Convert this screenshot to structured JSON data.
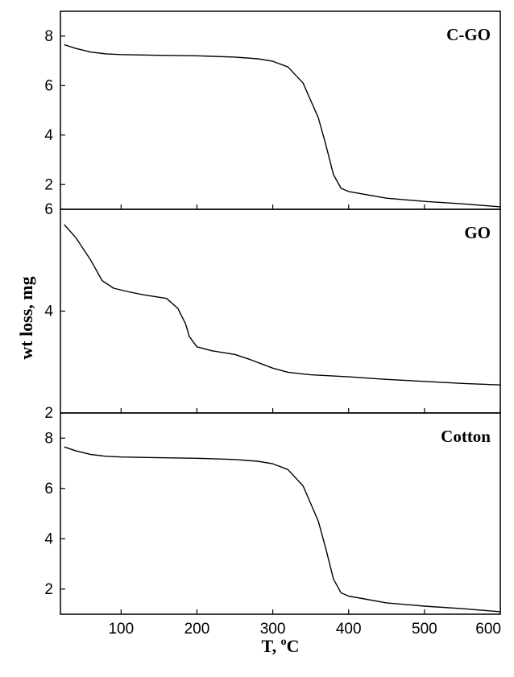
{
  "chart_data": {
    "type": "line",
    "xlabel": "T, ",
    "xlabel_sup": "o",
    "xlabel_unit": "C",
    "ylabel": "wt loss, mg",
    "xlim": [
      20,
      600
    ],
    "xticks": [
      100,
      200,
      300,
      400,
      500,
      600
    ],
    "grid": false,
    "panels": [
      {
        "label": "C-GO",
        "ylim": [
          1.0,
          9.0
        ],
        "yticks": [
          2,
          4,
          6,
          8
        ],
        "x": [
          25,
          40,
          60,
          80,
          100,
          150,
          200,
          250,
          280,
          300,
          320,
          340,
          360,
          370,
          380,
          390,
          400,
          450,
          500,
          550,
          600
        ],
        "y": [
          7.65,
          7.5,
          7.35,
          7.28,
          7.25,
          7.22,
          7.2,
          7.15,
          7.08,
          6.98,
          6.75,
          6.1,
          4.7,
          3.6,
          2.4,
          1.85,
          1.72,
          1.45,
          1.32,
          1.22,
          1.1
        ]
      },
      {
        "label": "GO",
        "ylim": [
          2.0,
          6.0
        ],
        "yticks": [
          2,
          4,
          6
        ],
        "x": [
          25,
          40,
          60,
          75,
          90,
          110,
          130,
          160,
          175,
          185,
          190,
          200,
          220,
          250,
          270,
          300,
          320,
          350,
          400,
          450,
          500,
          550,
          600
        ],
        "y": [
          5.7,
          5.45,
          5.0,
          4.6,
          4.45,
          4.38,
          4.32,
          4.25,
          4.05,
          3.75,
          3.5,
          3.3,
          3.22,
          3.15,
          3.05,
          2.88,
          2.8,
          2.75,
          2.71,
          2.66,
          2.62,
          2.58,
          2.55
        ]
      },
      {
        "label": "Cotton",
        "ylim": [
          1.0,
          9.0
        ],
        "yticks": [
          2,
          4,
          6,
          8
        ],
        "x": [
          25,
          40,
          60,
          80,
          100,
          150,
          200,
          250,
          280,
          300,
          320,
          340,
          360,
          370,
          380,
          390,
          400,
          450,
          500,
          550,
          600
        ],
        "y": [
          7.65,
          7.5,
          7.35,
          7.28,
          7.25,
          7.22,
          7.2,
          7.15,
          7.08,
          6.98,
          6.75,
          6.1,
          4.7,
          3.6,
          2.4,
          1.85,
          1.72,
          1.45,
          1.32,
          1.22,
          1.1
        ]
      }
    ]
  }
}
